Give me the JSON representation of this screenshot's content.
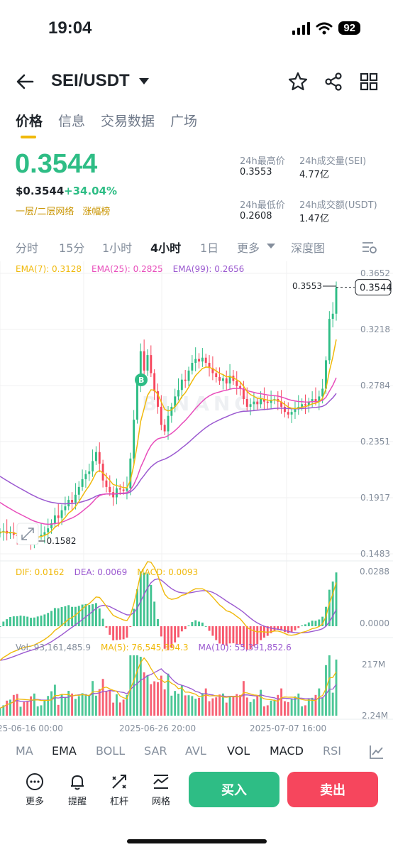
{
  "status_bar": {
    "time": "19:04",
    "battery": "92"
  },
  "header": {
    "pair": "SEI/USDT"
  },
  "tabs": [
    {
      "label": "价格",
      "active": true
    },
    {
      "label": "信息",
      "active": false
    },
    {
      "label": "交易数据",
      "active": false
    },
    {
      "label": "广场",
      "active": false
    }
  ],
  "price": {
    "last": "0.3544",
    "usd": "$0.3544",
    "change": "+34.04%",
    "tag1": "一层/二层网络",
    "tag2": "涨幅榜"
  },
  "stats": {
    "high_label": "24h最高价",
    "high_value": "0.3553",
    "vol_label": "24h成交量(SEI)",
    "vol_value": "4.77亿",
    "low_label": "24h最低价",
    "low_value": "0.2608",
    "amount_label": "24h成交额(USDT)",
    "amount_value": "1.47亿"
  },
  "intervals": {
    "items": [
      "分时",
      "15分",
      "1小时",
      "4小时",
      "1日",
      "更多",
      "深度图"
    ],
    "active": "4小时"
  },
  "indicators_main": {
    "ema7": "EMA(7): 0.3128",
    "ema25": "EMA(25): 0.2825",
    "ema99": "EMA(99): 0.2656"
  },
  "indicators_macd": {
    "dif": "DIF: 0.0162",
    "dea": "DEA: 0.0069",
    "macd": "MACD: 0.0093"
  },
  "indicators_vol": {
    "vol": "Vol: 93,161,485.9",
    "ma5": "MA(5): 76,545,394.3",
    "ma10": "MA(10): 55,391,852.6"
  },
  "watermark": "BINANCE",
  "colors": {
    "up": "#2ebd85",
    "down": "#f6465d",
    "ema7": "#f0b90b",
    "ema25": "#e84dbb",
    "ema99": "#9b59d0",
    "accent": "#f0b90b"
  },
  "chart_data": [
    {
      "type": "candlestick",
      "y_ticks": [
        "0.3652",
        "0.3218",
        "0.2784",
        "0.2351",
        "0.1917",
        "0.1483"
      ],
      "ylim": [
        0.1483,
        0.3652
      ],
      "x_ticks": [
        "25-06-16 00:00",
        "2025-06-26 20:00",
        "2025-07-07 16:00"
      ],
      "last_price": "0.3544",
      "high_marker": "0.3553",
      "low_marker": "0.1582",
      "trade_marker": "B",
      "close_series": [
        0.165,
        0.166,
        0.164,
        0.165,
        0.163,
        0.162,
        0.163,
        0.161,
        0.16,
        0.158,
        0.16,
        0.162,
        0.163,
        0.165,
        0.168,
        0.172,
        0.178,
        0.176,
        0.182,
        0.185,
        0.19,
        0.188,
        0.194,
        0.2,
        0.206,
        0.21,
        0.212,
        0.22,
        0.227,
        0.218,
        0.205,
        0.2,
        0.196,
        0.192,
        0.199,
        0.198,
        0.197,
        0.199,
        0.222,
        0.252,
        0.28,
        0.305,
        0.29,
        0.302,
        0.288,
        0.274,
        0.262,
        0.248,
        0.243,
        0.255,
        0.262,
        0.27,
        0.275,
        0.283,
        0.282,
        0.29,
        0.296,
        0.299,
        0.297,
        0.3,
        0.296,
        0.292,
        0.288,
        0.285,
        0.282,
        0.284,
        0.28,
        0.286,
        0.282,
        0.278,
        0.276,
        0.268,
        0.262,
        0.264,
        0.266,
        0.264,
        0.268,
        0.266,
        0.265,
        0.267,
        0.268,
        0.266,
        0.262,
        0.258,
        0.256,
        0.258,
        0.26,
        0.262,
        0.264,
        0.263,
        0.266,
        0.268,
        0.266,
        0.27,
        0.276,
        0.298,
        0.33,
        0.334,
        0.3544
      ]
    },
    {
      "type": "bar",
      "name": "MACD",
      "y_ticks": [
        "0.0288",
        "0.0000"
      ],
      "dif": "0.0162",
      "dea": "0.0069",
      "macd": "0.0093"
    },
    {
      "type": "bar",
      "name": "Vol",
      "y_ticks": [
        "217M",
        "2.24M"
      ]
    }
  ],
  "indicator_tabs": {
    "items": [
      "MA",
      "EMA",
      "BOLL",
      "SAR",
      "AVL",
      "VOL",
      "MACD",
      "RSI"
    ],
    "active": [
      "EMA",
      "VOL",
      "MACD"
    ]
  },
  "bottom_bar": {
    "more": "更多",
    "alert": "提醒",
    "leverage": "杠杆",
    "grid": "网格",
    "buy": "买入",
    "sell": "卖出"
  }
}
